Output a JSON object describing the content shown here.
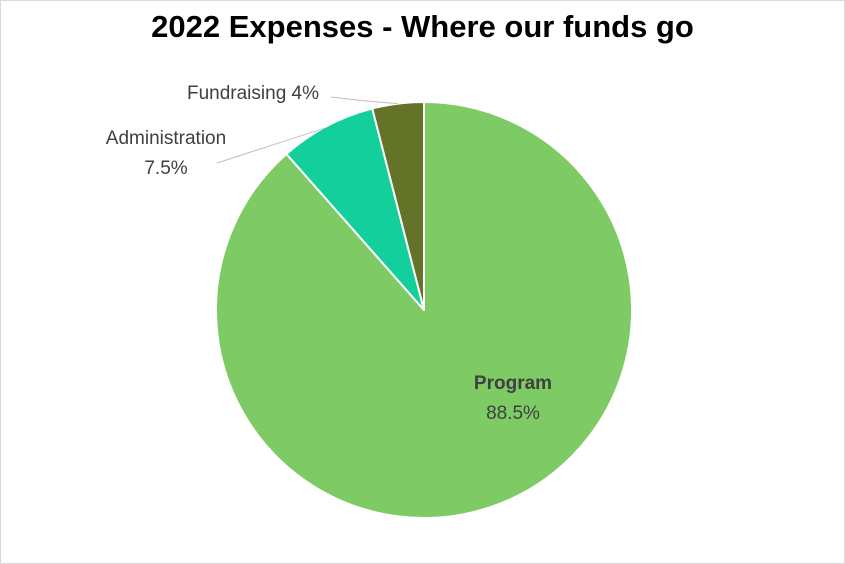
{
  "chart_data": {
    "type": "pie",
    "title": "2022 Expenses - Where our funds go",
    "slices": [
      {
        "name": "Program",
        "value": 88.5,
        "label_value": "88.5%",
        "color": "#7ecb65"
      },
      {
        "name": "Administration",
        "value": 7.5,
        "label_value": "7.5%",
        "color": "#12cf9b"
      },
      {
        "name": "Fundraising",
        "value": 4,
        "label_value": "4%",
        "color": "#657329"
      }
    ],
    "fundraising_label": "Fundraising 4%",
    "start_angle_deg": 0,
    "direction": "clockwise",
    "label_color": "#404040",
    "leader_line_color": "#bfbfbf"
  }
}
